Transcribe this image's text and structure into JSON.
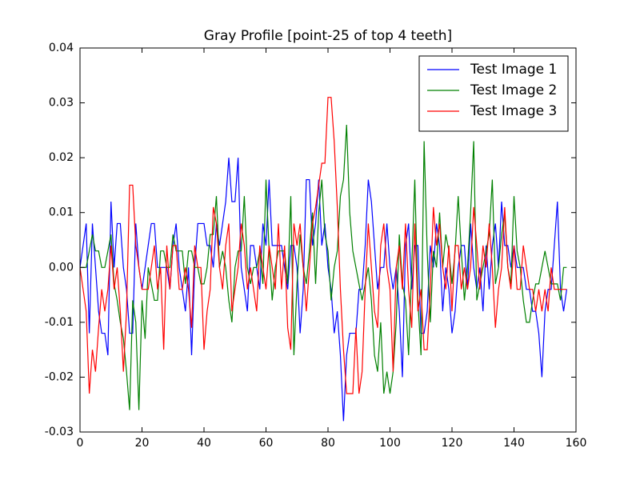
{
  "chart_data": {
    "type": "line",
    "title": "Gray Profile [point-25 of top 4 teeth]",
    "x": [
      0,
      1,
      2,
      3,
      4,
      5,
      6,
      7,
      8,
      9,
      10,
      11,
      12,
      13,
      14,
      15,
      16,
      17,
      18,
      19,
      20,
      21,
      22,
      23,
      24,
      25,
      26,
      27,
      28,
      29,
      30,
      31,
      32,
      33,
      34,
      35,
      36,
      37,
      38,
      39,
      40,
      41,
      42,
      43,
      44,
      45,
      46,
      47,
      48,
      49,
      50,
      51,
      52,
      53,
      54,
      55,
      56,
      57,
      58,
      59,
      60,
      61,
      62,
      63,
      64,
      65,
      66,
      67,
      68,
      69,
      70,
      71,
      72,
      73,
      74,
      75,
      76,
      77,
      78,
      79,
      80,
      81,
      82,
      83,
      84,
      85,
      86,
      87,
      88,
      89,
      90,
      91,
      92,
      93,
      94,
      95,
      96,
      97,
      98,
      99,
      100,
      101,
      102,
      103,
      104,
      105,
      106,
      107,
      108,
      109,
      110,
      111,
      112,
      113,
      114,
      115,
      116,
      117,
      118,
      119,
      120,
      121,
      122,
      123,
      124,
      125,
      126,
      127,
      128,
      129,
      130,
      131,
      132,
      133,
      134,
      135,
      136,
      137,
      138,
      139,
      140,
      141,
      142,
      143,
      144,
      145,
      146,
      147,
      148,
      149,
      150,
      151,
      152,
      153,
      154,
      155,
      156,
      157
    ],
    "series": [
      {
        "name": "Test Image 1",
        "color": "#0000ff",
        "values": [
          0,
          0.004,
          0.008,
          -0.012,
          0.008,
          0,
          -0.008,
          -0.012,
          -0.012,
          -0.016,
          0.012,
          0,
          0.008,
          0.008,
          0,
          -0.004,
          -0.012,
          -0.012,
          0.008,
          0,
          -0.004,
          0,
          0.004,
          0.008,
          0.008,
          0,
          0,
          0,
          0,
          -0.004,
          0.004,
          0.008,
          0,
          -0.004,
          -0.008,
          0,
          -0.016,
          0,
          0.008,
          0.008,
          0.008,
          0.004,
          0.004,
          0,
          0.008,
          0.004,
          0.008,
          0.012,
          0.02,
          0.012,
          0.012,
          0.02,
          0,
          -0.004,
          -0.008,
          0.004,
          0.004,
          0,
          -0.004,
          0.008,
          0.004,
          0.016,
          0.004,
          0.004,
          0.004,
          0.004,
          0,
          -0.004,
          0.004,
          0.004,
          0,
          -0.012,
          -0.004,
          0.016,
          0.016,
          0.004,
          0.008,
          0.016,
          0.004,
          0.008,
          0,
          -0.004,
          -0.012,
          -0.008,
          -0.016,
          -0.028,
          -0.016,
          -0.012,
          -0.012,
          -0.012,
          -0.004,
          -0.004,
          0.004,
          0.016,
          0.012,
          0.004,
          -0.004,
          0,
          0,
          0.008,
          0,
          -0.004,
          0,
          -0.008,
          -0.02,
          0.004,
          0.008,
          -0.004,
          0.004,
          0.004,
          -0.012,
          -0.012,
          -0.008,
          0.004,
          0,
          0.008,
          0.004,
          -0.008,
          0,
          -0.004,
          -0.012,
          -0.008,
          0,
          0.004,
          0.004,
          -0.004,
          0.008,
          0,
          -0.004,
          0,
          -0.008,
          0.004,
          -0.004,
          0.004,
          0.008,
          0,
          0.012,
          0.004,
          0.004,
          0,
          0.004,
          0,
          0,
          0,
          -0.004,
          -0.004,
          -0.008,
          -0.008,
          -0.012,
          -0.02,
          -0.008,
          -0.004,
          -0.004,
          0.004,
          0.012,
          -0.004,
          -0.008,
          -0.004
        ]
      },
      {
        "name": "Test Image 2",
        "color": "#008000",
        "values": [
          0,
          0,
          0,
          0.003,
          0.006,
          0.003,
          0.003,
          0,
          0,
          0.003,
          0.006,
          -0.003,
          -0.006,
          -0.01,
          -0.013,
          -0.019,
          -0.026,
          -0.006,
          -0.01,
          -0.026,
          -0.006,
          -0.013,
          0,
          -0.003,
          -0.006,
          -0.006,
          0.003,
          0.003,
          0,
          0,
          0.006,
          0.003,
          0.003,
          0.003,
          -0.003,
          0.003,
          0.003,
          0,
          0,
          -0.003,
          -0.003,
          0,
          0.006,
          0.006,
          0.013,
          0,
          0.003,
          0,
          -0.006,
          -0.01,
          0,
          0.003,
          0.003,
          0.013,
          0,
          -0.003,
          0,
          0,
          0.003,
          -0.003,
          0.016,
          0.003,
          -0.006,
          0,
          0.003,
          0.003,
          0.003,
          -0.003,
          0.013,
          -0.016,
          -0.003,
          0.006,
          0,
          -0.003,
          0.003,
          0.01,
          -0.003,
          0.01,
          0.016,
          0.006,
          0.003,
          -0.006,
          0,
          0.003,
          0.013,
          0.016,
          0.026,
          0.01,
          0.003,
          0,
          -0.003,
          -0.006,
          -0.003,
          0,
          -0.006,
          -0.016,
          -0.019,
          -0.01,
          -0.023,
          -0.019,
          -0.023,
          -0.019,
          -0.01,
          0.006,
          -0.003,
          -0.006,
          -0.016,
          0,
          0.016,
          -0.006,
          -0.016,
          0.023,
          0.003,
          -0.01,
          0.003,
          0,
          0.01,
          0,
          0.006,
          0.003,
          -0.003,
          0.003,
          0.013,
          0.003,
          -0.006,
          0,
          0.01,
          0.023,
          -0.006,
          -0.003,
          0,
          0.003,
          0.006,
          0.016,
          -0.003,
          0,
          0.006,
          0.01,
          0,
          -0.003,
          0.013,
          0.003,
          0,
          -0.006,
          -0.01,
          -0.01,
          -0.006,
          -0.003,
          -0.003,
          0,
          0.003,
          0,
          -0.003,
          -0.003,
          -0.003,
          -0.006,
          0,
          0
        ]
      },
      {
        "name": "Test Image 3",
        "color": "#ff0000",
        "values": [
          0,
          -0.004,
          -0.008,
          -0.023,
          -0.015,
          -0.019,
          -0.011,
          -0.004,
          -0.008,
          -0.004,
          0.004,
          -0.004,
          0,
          -0.008,
          -0.019,
          -0.008,
          0.015,
          0.015,
          0.004,
          0,
          -0.004,
          -0.004,
          -0.004,
          0,
          0.004,
          -0.004,
          0,
          -0.015,
          0.004,
          -0.004,
          0.004,
          0.004,
          -0.004,
          -0.004,
          0,
          -0.004,
          -0.011,
          0.004,
          0,
          0,
          -0.015,
          -0.008,
          -0.004,
          0.011,
          0.008,
          0,
          -0.004,
          0.004,
          0.008,
          -0.008,
          -0.004,
          0,
          0.008,
          0.004,
          -0.004,
          0,
          -0.004,
          -0.008,
          0.004,
          0,
          -0.004,
          0.004,
          0,
          -0.004,
          0.008,
          -0.004,
          0.004,
          -0.011,
          -0.015,
          0.008,
          0.004,
          0.008,
          0,
          -0.008,
          0,
          0.008,
          0.011,
          0.015,
          0.019,
          0.019,
          0.031,
          0.031,
          0.023,
          0.011,
          -0.004,
          -0.015,
          -0.023,
          -0.023,
          -0.023,
          -0.011,
          -0.023,
          -0.019,
          -0.004,
          0.008,
          0,
          -0.008,
          -0.011,
          0.004,
          0.008,
          0,
          -0.004,
          -0.019,
          0,
          0.004,
          -0.004,
          0.008,
          -0.004,
          -0.011,
          0.008,
          -0.008,
          -0.004,
          -0.015,
          -0.015,
          -0.004,
          0.011,
          0.004,
          0.008,
          0,
          -0.004,
          0.004,
          -0.008,
          0.004,
          0.004,
          -0.004,
          0,
          -0.004,
          0,
          0.011,
          0.004,
          -0.004,
          0.004,
          0,
          0.008,
          0,
          -0.011,
          -0.004,
          0,
          0.011,
          0,
          -0.004,
          0.004,
          -0.004,
          -0.004,
          0.004,
          0,
          -0.004,
          -0.004,
          -0.008,
          -0.004,
          -0.008,
          -0.004,
          -0.008,
          0,
          -0.004,
          -0.004,
          -0.004,
          -0.004,
          -0.004
        ]
      }
    ],
    "xlim": [
      0,
      160
    ],
    "xticks": [
      0,
      20,
      40,
      60,
      80,
      100,
      120,
      140,
      160
    ],
    "ylim": [
      -0.03,
      0.04
    ],
    "yticks": [
      -0.03,
      -0.02,
      -0.01,
      {
        "value": 0,
        "label": "0.00"
      },
      0.01,
      0.02,
      0.03,
      0.04
    ],
    "legend": "upper right"
  }
}
